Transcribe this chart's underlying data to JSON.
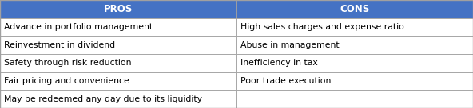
{
  "title_pros": "PROS",
  "title_cons": "CONS",
  "header_bg_color": "#4472C4",
  "header_text_color": "#FFFFFF",
  "cell_bg_color": "#FFFFFF",
  "cell_text_color": "#000000",
  "border_color": "#A0A0A0",
  "pros": [
    "Advance in portfolio management",
    "Reinvestment in dividend",
    "Safety through risk reduction",
    "Fair pricing and convenience",
    "May be redeemed any day due to its liquidity"
  ],
  "cons": [
    "High sales charges and expense ratio",
    "Abuse in management",
    "Inefficiency in tax",
    "Poor trade execution",
    ""
  ],
  "header_fontsize": 8.5,
  "cell_fontsize": 7.8,
  "fig_width": 5.92,
  "fig_height": 1.36,
  "col_split": 0.5
}
